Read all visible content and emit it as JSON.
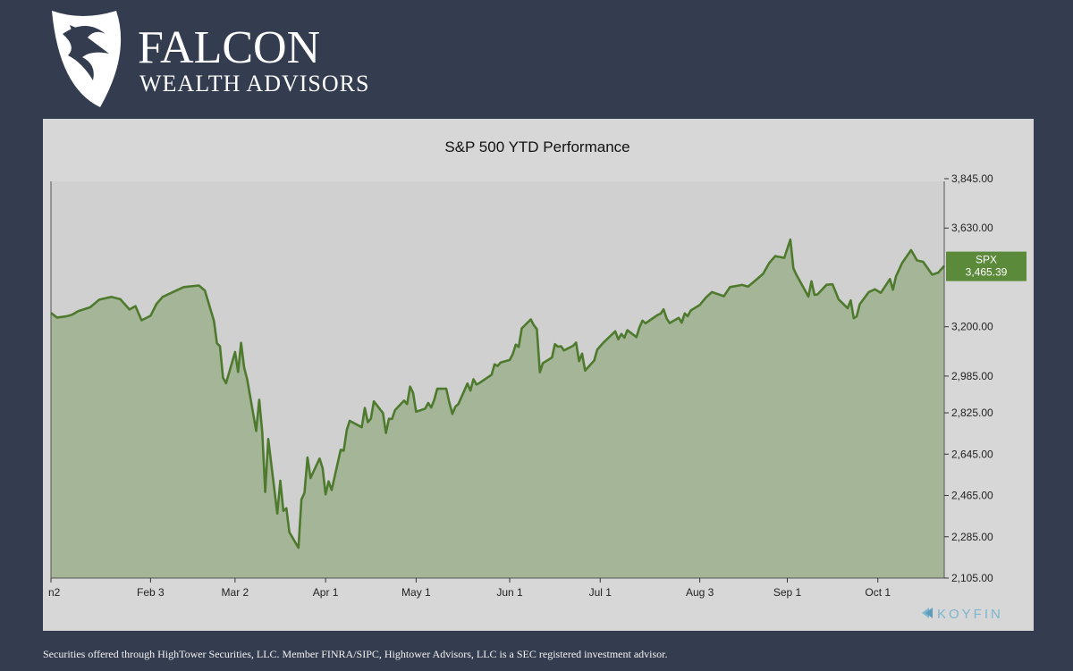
{
  "brand": {
    "name": "FALCON",
    "subtitle": "WEALTH ADVISORS"
  },
  "footer": {
    "disclaimer": "Securities offered through HighTower Securities, LLC. Member FINRA/SIPC, Hightower Advisors, LLC is a SEC registered investment advisor."
  },
  "watermark": {
    "text": "KOYFIN",
    "color": "#7eb5cf"
  },
  "colors": {
    "background": "#343d4f",
    "panel": "#d7d7d7",
    "line": "#4e7a2e",
    "area": "#a5b598",
    "badge": "#5a8a3a"
  },
  "chart_data": {
    "type": "area",
    "title": "S&P 500 YTD Performance",
    "series_label": "SPX",
    "last_value_label": "3,465.39",
    "ylim": [
      2105,
      4000
    ],
    "y_ticks": [
      3845,
      3630,
      3200,
      2985,
      2825,
      2645,
      2465,
      2285,
      2105
    ],
    "y_tick_labels": [
      "3,845.00",
      "3,630.00",
      "3,200.00",
      "2,985.00",
      "2,825.00",
      "2,645.00",
      "2,465.00",
      "2,285.00",
      "2,105.00"
    ],
    "x_range": [
      "2020-01-01",
      "2020-10-23"
    ],
    "x_tick_dates": [
      "2020-01-01",
      "2020-02-03",
      "2020-03-02",
      "2020-04-01",
      "2020-05-01",
      "2020-06-01",
      "2020-07-01",
      "2020-08-03",
      "2020-09-01",
      "2020-10-01"
    ],
    "x_tick_labels": [
      "n2",
      "Feb 3",
      "Mar 2",
      "Apr 1",
      "May 1",
      "Jun 1",
      "Jul 1",
      "Aug 3",
      "Sep 1",
      "Oct 1"
    ],
    "grid": false,
    "points": [
      [
        "2020-01-01",
        3260
      ],
      [
        "2020-01-03",
        3240
      ],
      [
        "2020-01-06",
        3245
      ],
      [
        "2020-01-08",
        3252
      ],
      [
        "2020-01-10",
        3268
      ],
      [
        "2020-01-14",
        3285
      ],
      [
        "2020-01-17",
        3318
      ],
      [
        "2020-01-21",
        3330
      ],
      [
        "2020-01-24",
        3320
      ],
      [
        "2020-01-27",
        3275
      ],
      [
        "2020-01-29",
        3290
      ],
      [
        "2020-01-31",
        3228
      ],
      [
        "2020-02-03",
        3248
      ],
      [
        "2020-02-05",
        3300
      ],
      [
        "2020-02-07",
        3330
      ],
      [
        "2020-02-11",
        3355
      ],
      [
        "2020-02-14",
        3373
      ],
      [
        "2020-02-19",
        3380
      ],
      [
        "2020-02-21",
        3358
      ],
      [
        "2020-02-24",
        3225
      ],
      [
        "2020-02-25",
        3128
      ],
      [
        "2020-02-26",
        3115
      ],
      [
        "2020-02-27",
        2978
      ],
      [
        "2020-02-28",
        2954
      ],
      [
        "2020-03-02",
        3090
      ],
      [
        "2020-03-03",
        3003
      ],
      [
        "2020-03-04",
        3130
      ],
      [
        "2020-03-05",
        3023
      ],
      [
        "2020-03-06",
        2972
      ],
      [
        "2020-03-09",
        2746
      ],
      [
        "2020-03-10",
        2882
      ],
      [
        "2020-03-11",
        2741
      ],
      [
        "2020-03-12",
        2480
      ],
      [
        "2020-03-13",
        2711
      ],
      [
        "2020-03-16",
        2386
      ],
      [
        "2020-03-17",
        2529
      ],
      [
        "2020-03-18",
        2398
      ],
      [
        "2020-03-19",
        2409
      ],
      [
        "2020-03-20",
        2305
      ],
      [
        "2020-03-23",
        2237
      ],
      [
        "2020-03-24",
        2447
      ],
      [
        "2020-03-25",
        2476
      ],
      [
        "2020-03-26",
        2630
      ],
      [
        "2020-03-27",
        2541
      ],
      [
        "2020-03-30",
        2626
      ],
      [
        "2020-03-31",
        2584
      ],
      [
        "2020-04-01",
        2470
      ],
      [
        "2020-04-02",
        2526
      ],
      [
        "2020-04-03",
        2489
      ],
      [
        "2020-04-06",
        2664
      ],
      [
        "2020-04-07",
        2660
      ],
      [
        "2020-04-08",
        2750
      ],
      [
        "2020-04-09",
        2790
      ],
      [
        "2020-04-13",
        2762
      ],
      [
        "2020-04-14",
        2846
      ],
      [
        "2020-04-15",
        2784
      ],
      [
        "2020-04-16",
        2800
      ],
      [
        "2020-04-17",
        2875
      ],
      [
        "2020-04-20",
        2824
      ],
      [
        "2020-04-21",
        2737
      ],
      [
        "2020-04-22",
        2799
      ],
      [
        "2020-04-23",
        2798
      ],
      [
        "2020-04-24",
        2837
      ],
      [
        "2020-04-27",
        2878
      ],
      [
        "2020-04-28",
        2863
      ],
      [
        "2020-04-29",
        2939
      ],
      [
        "2020-04-30",
        2912
      ],
      [
        "2020-05-01",
        2830
      ],
      [
        "2020-05-04",
        2843
      ],
      [
        "2020-05-05",
        2868
      ],
      [
        "2020-05-06",
        2848
      ],
      [
        "2020-05-07",
        2881
      ],
      [
        "2020-05-08",
        2930
      ],
      [
        "2020-05-11",
        2930
      ],
      [
        "2020-05-12",
        2870
      ],
      [
        "2020-05-13",
        2820
      ],
      [
        "2020-05-14",
        2852
      ],
      [
        "2020-05-15",
        2863
      ],
      [
        "2020-05-18",
        2953
      ],
      [
        "2020-05-19",
        2922
      ],
      [
        "2020-05-20",
        2971
      ],
      [
        "2020-05-21",
        2948
      ],
      [
        "2020-05-22",
        2955
      ],
      [
        "2020-05-26",
        2991
      ],
      [
        "2020-05-27",
        3036
      ],
      [
        "2020-05-28",
        3029
      ],
      [
        "2020-05-29",
        3044
      ],
      [
        "2020-06-01",
        3055
      ],
      [
        "2020-06-02",
        3080
      ],
      [
        "2020-06-03",
        3122
      ],
      [
        "2020-06-04",
        3112
      ],
      [
        "2020-06-05",
        3193
      ],
      [
        "2020-06-08",
        3232
      ],
      [
        "2020-06-09",
        3207
      ],
      [
        "2020-06-10",
        3190
      ],
      [
        "2020-06-11",
        3002
      ],
      [
        "2020-06-12",
        3041
      ],
      [
        "2020-06-15",
        3066
      ],
      [
        "2020-06-16",
        3124
      ],
      [
        "2020-06-17",
        3113
      ],
      [
        "2020-06-18",
        3115
      ],
      [
        "2020-06-19",
        3097
      ],
      [
        "2020-06-22",
        3117
      ],
      [
        "2020-06-23",
        3131
      ],
      [
        "2020-06-24",
        3050
      ],
      [
        "2020-06-25",
        3083
      ],
      [
        "2020-06-26",
        3009
      ],
      [
        "2020-06-29",
        3053
      ],
      [
        "2020-06-30",
        3100
      ],
      [
        "2020-07-01",
        3115
      ],
      [
        "2020-07-02",
        3130
      ],
      [
        "2020-07-06",
        3180
      ],
      [
        "2020-07-07",
        3145
      ],
      [
        "2020-07-08",
        3169
      ],
      [
        "2020-07-09",
        3152
      ],
      [
        "2020-07-10",
        3185
      ],
      [
        "2020-07-13",
        3155
      ],
      [
        "2020-07-14",
        3197
      ],
      [
        "2020-07-15",
        3227
      ],
      [
        "2020-07-16",
        3215
      ],
      [
        "2020-07-17",
        3224
      ],
      [
        "2020-07-20",
        3251
      ],
      [
        "2020-07-21",
        3257
      ],
      [
        "2020-07-22",
        3276
      ],
      [
        "2020-07-23",
        3236
      ],
      [
        "2020-07-24",
        3216
      ],
      [
        "2020-07-27",
        3239
      ],
      [
        "2020-07-28",
        3218
      ],
      [
        "2020-07-29",
        3258
      ],
      [
        "2020-07-30",
        3246
      ],
      [
        "2020-07-31",
        3271
      ],
      [
        "2020-08-03",
        3295
      ],
      [
        "2020-08-05",
        3327
      ],
      [
        "2020-08-07",
        3351
      ],
      [
        "2020-08-11",
        3333
      ],
      [
        "2020-08-13",
        3373
      ],
      [
        "2020-08-17",
        3382
      ],
      [
        "2020-08-19",
        3375
      ],
      [
        "2020-08-21",
        3397
      ],
      [
        "2020-08-24",
        3431
      ],
      [
        "2020-08-26",
        3478
      ],
      [
        "2020-08-28",
        3508
      ],
      [
        "2020-08-31",
        3500
      ],
      [
        "2020-09-02",
        3580
      ],
      [
        "2020-09-03",
        3455
      ],
      [
        "2020-09-04",
        3427
      ],
      [
        "2020-09-08",
        3331
      ],
      [
        "2020-09-09",
        3398
      ],
      [
        "2020-09-10",
        3339
      ],
      [
        "2020-09-11",
        3341
      ],
      [
        "2020-09-14",
        3383
      ],
      [
        "2020-09-16",
        3385
      ],
      [
        "2020-09-18",
        3319
      ],
      [
        "2020-09-21",
        3281
      ],
      [
        "2020-09-22",
        3315
      ],
      [
        "2020-09-23",
        3237
      ],
      [
        "2020-09-24",
        3246
      ],
      [
        "2020-09-25",
        3298
      ],
      [
        "2020-09-28",
        3351
      ],
      [
        "2020-09-30",
        3363
      ],
      [
        "2020-10-02",
        3348
      ],
      [
        "2020-10-05",
        3408
      ],
      [
        "2020-10-06",
        3361
      ],
      [
        "2020-10-07",
        3419
      ],
      [
        "2020-10-09",
        3477
      ],
      [
        "2020-10-12",
        3534
      ],
      [
        "2020-10-14",
        3489
      ],
      [
        "2020-10-16",
        3483
      ],
      [
        "2020-10-19",
        3427
      ],
      [
        "2020-10-21",
        3436
      ],
      [
        "2020-10-23",
        3465
      ]
    ]
  }
}
